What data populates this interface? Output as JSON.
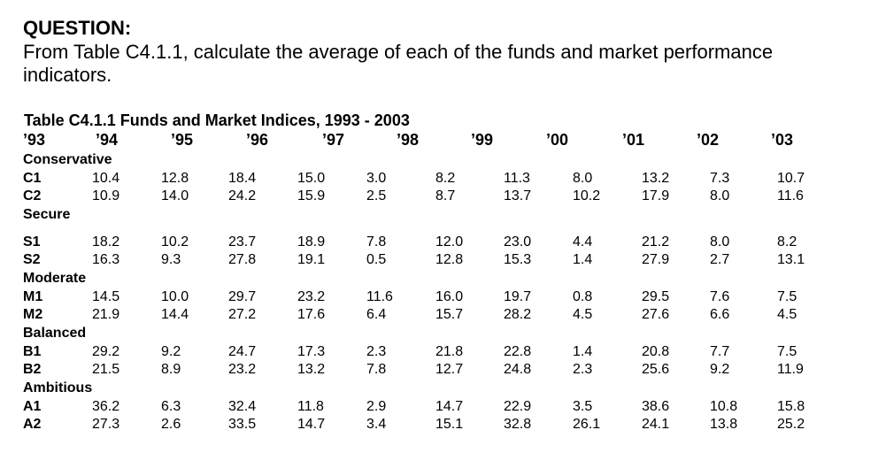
{
  "question": {
    "title": "QUESTION:",
    "text": "From Table C4.1.1, calculate the average of each of the funds and market performance indicators."
  },
  "table": {
    "caption": "Table C4.1.1 Funds and Market Indices, 1993 - 2003",
    "years": [
      "’93",
      "’94",
      "’95",
      "’96",
      "’97",
      "’98",
      "’99",
      "’00",
      "’01",
      "’02",
      "’03"
    ],
    "groups": [
      {
        "name": "Conservative",
        "rows": [
          {
            "label": "C1",
            "values": [
              "10.4",
              "12.8",
              "18.4",
              "15.0",
              "3.0",
              "8.2",
              "11.3",
              "8.0",
              "13.2",
              "7.3",
              "10.7"
            ]
          },
          {
            "label": "C2",
            "values": [
              "10.9",
              "14.0",
              "24.2",
              "15.9",
              "2.5",
              "8.7",
              "13.7",
              "10.2",
              "17.9",
              "8.0",
              "11.6"
            ]
          }
        ]
      },
      {
        "name": "Secure",
        "rows": [
          {
            "label": "S1",
            "values": [
              "18.2",
              "10.2",
              "23.7",
              "18.9",
              "7.8",
              "12.0",
              "23.0",
              "4.4",
              "21.2",
              "8.0",
              "8.2"
            ]
          },
          {
            "label": "S2",
            "values": [
              "16.3",
              "9.3",
              "27.8",
              "19.1",
              "0.5",
              "12.8",
              "15.3",
              "1.4",
              "27.9",
              "2.7",
              "13.1"
            ]
          }
        ]
      },
      {
        "name": "Moderate",
        "rows": [
          {
            "label": "M1",
            "values": [
              "14.5",
              "10.0",
              "29.7",
              "23.2",
              "11.6",
              "16.0",
              "19.7",
              "0.8",
              "29.5",
              "7.6",
              "7.5"
            ]
          },
          {
            "label": "M2",
            "values": [
              "21.9",
              "14.4",
              "27.2",
              "17.6",
              "6.4",
              "15.7",
              "28.2",
              "4.5",
              "27.6",
              "6.6",
              "4.5"
            ]
          }
        ]
      },
      {
        "name": "Balanced",
        "rows": [
          {
            "label": "B1",
            "values": [
              "29.2",
              "9.2",
              "24.7",
              "17.3",
              "2.3",
              "21.8",
              "22.8",
              "1.4",
              "20.8",
              "7.7",
              "7.5"
            ]
          },
          {
            "label": "B2",
            "values": [
              "21.5",
              "8.9",
              "23.2",
              "13.2",
              "7.8",
              "12.7",
              "24.8",
              "2.3",
              "25.6",
              "9.2",
              "11.9"
            ]
          }
        ]
      },
      {
        "name": "Ambitious",
        "rows": [
          {
            "label": "A1",
            "values": [
              "36.2",
              "6.3",
              "32.4",
              "11.8",
              "2.9",
              "14.7",
              "22.9",
              "3.5",
              "38.6",
              "10.8",
              "15.8"
            ]
          },
          {
            "label": "A2",
            "values": [
              "27.3",
              "2.6",
              "33.5",
              "14.7",
              "3.4",
              "15.1",
              "32.8",
              "26.1",
              "24.1",
              "13.8",
              "25.2"
            ]
          }
        ]
      }
    ]
  }
}
